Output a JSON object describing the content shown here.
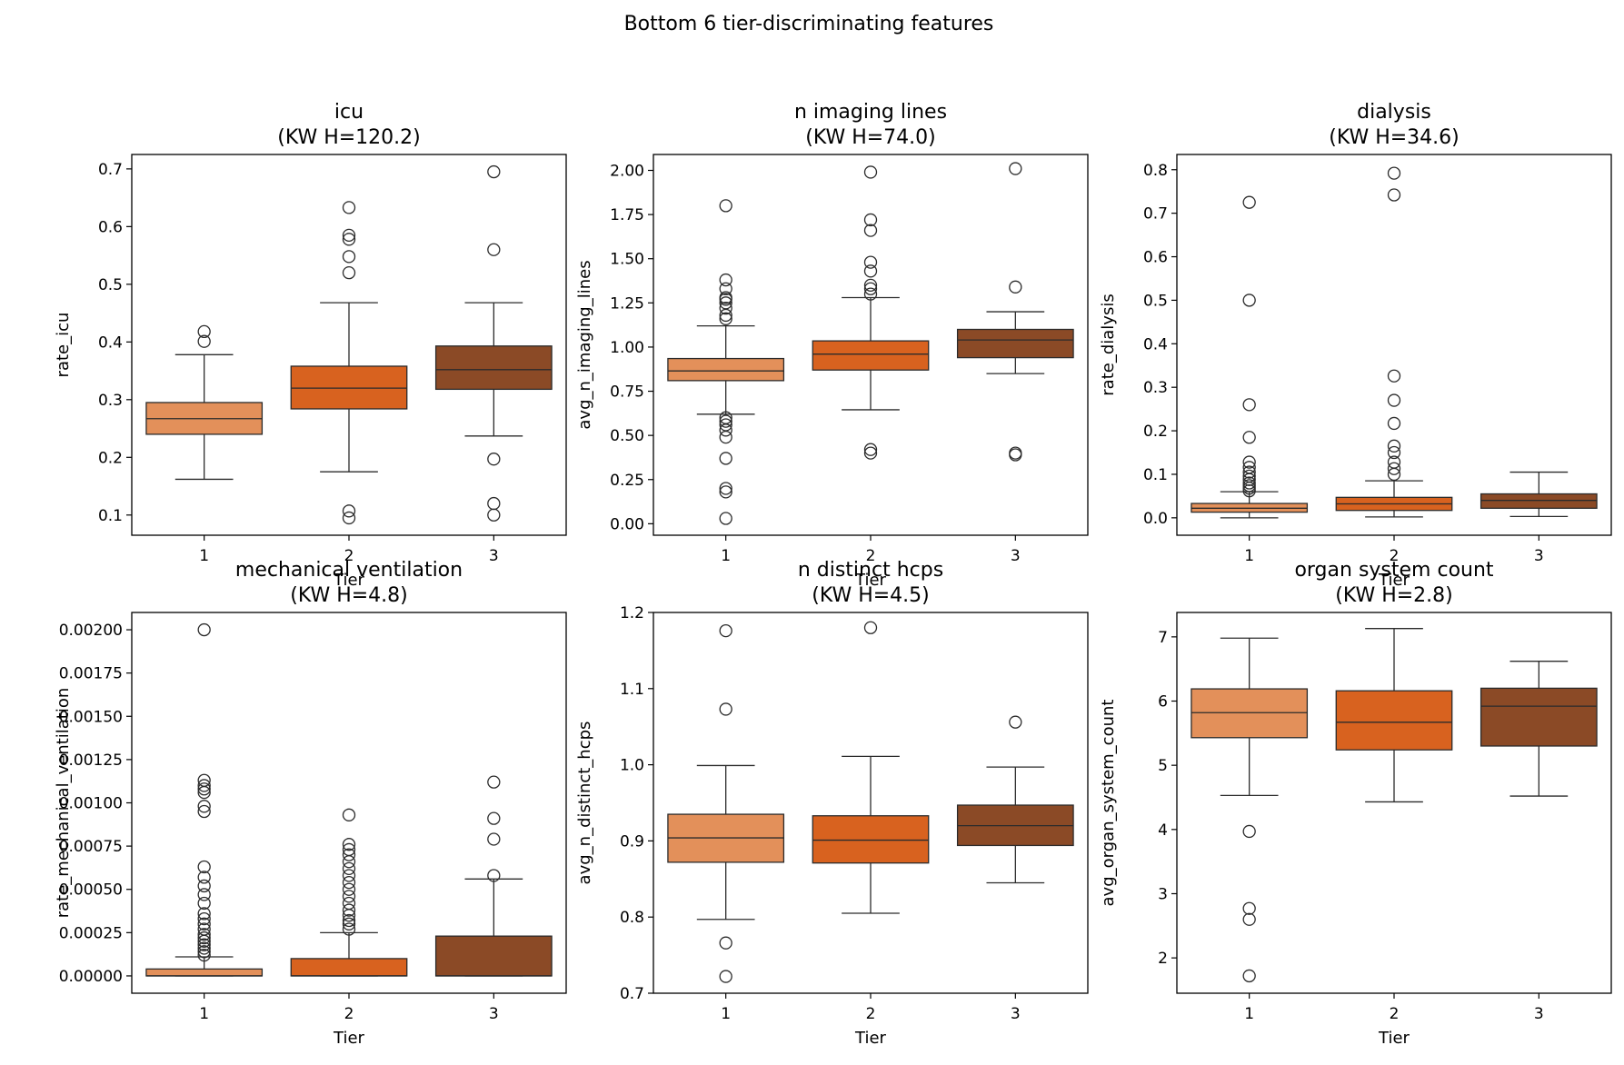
{
  "chart_data": {
    "type": "boxplot",
    "suptitle": "Bottom 6 tier-discriminating features",
    "colors": [
      "#E3905A",
      "#D8621F",
      "#8B4A26"
    ],
    "panels": [
      {
        "title": "icu",
        "subtitle": "(KW H=120.2)",
        "xlabel": "Tier",
        "ylabel": "rate_icu",
        "categories": [
          "1",
          "2",
          "3"
        ],
        "ylim": [
          0.065,
          0.725
        ],
        "yticks": [
          0.1,
          0.2,
          0.3,
          0.4,
          0.5,
          0.6,
          0.7
        ],
        "ytick_labels": [
          "0.1",
          "0.2",
          "0.3",
          "0.4",
          "0.5",
          "0.6",
          "0.7"
        ],
        "boxes": [
          {
            "tier": "1",
            "whislo": 0.162,
            "q1": 0.24,
            "med": 0.267,
            "q3": 0.295,
            "whishi": 0.378,
            "fliers": [
              0.401,
              0.418
            ]
          },
          {
            "tier": "2",
            "whislo": 0.175,
            "q1": 0.284,
            "med": 0.32,
            "q3": 0.358,
            "whishi": 0.468,
            "fliers": [
              0.095,
              0.107,
              0.52,
              0.548,
              0.578,
              0.585,
              0.633
            ]
          },
          {
            "tier": "3",
            "whislo": 0.237,
            "q1": 0.318,
            "med": 0.352,
            "q3": 0.393,
            "whishi": 0.468,
            "fliers": [
              0.1,
              0.12,
              0.197,
              0.56,
              0.695
            ]
          }
        ]
      },
      {
        "title": "n imaging lines",
        "subtitle": "(KW H=74.0)",
        "xlabel": "Tier",
        "ylabel": "avg_n_imaging_lines",
        "categories": [
          "1",
          "2",
          "3"
        ],
        "ylim": [
          -0.065,
          2.09
        ],
        "yticks": [
          0,
          0.25,
          0.5,
          0.75,
          1.0,
          1.25,
          1.5,
          1.75,
          2.0
        ],
        "ytick_labels": [
          "0.00",
          "0.25",
          "0.50",
          "0.75",
          "1.00",
          "1.25",
          "1.50",
          "1.75",
          "2.00"
        ],
        "boxes": [
          {
            "tier": "1",
            "whislo": 0.62,
            "q1": 0.81,
            "med": 0.865,
            "q3": 0.935,
            "whishi": 1.12,
            "fliers": [
              0.03,
              0.18,
              0.2,
              0.37,
              0.49,
              0.53,
              0.56,
              0.58,
              0.6,
              1.16,
              1.18,
              1.22,
              1.25,
              1.27,
              1.28,
              1.33,
              1.38,
              1.8
            ]
          },
          {
            "tier": "2",
            "whislo": 0.645,
            "q1": 0.87,
            "med": 0.96,
            "q3": 1.035,
            "whishi": 1.28,
            "fliers": [
              0.4,
              0.42,
              1.3,
              1.33,
              1.35,
              1.43,
              1.48,
              1.66,
              1.72,
              1.99
            ]
          },
          {
            "tier": "3",
            "whislo": 0.85,
            "q1": 0.94,
            "med": 1.04,
            "q3": 1.1,
            "whishi": 1.2,
            "fliers": [
              0.39,
              0.4,
              1.34,
              2.01
            ]
          }
        ]
      },
      {
        "title": "dialysis",
        "subtitle": "(KW H=34.6)",
        "xlabel": "Tier",
        "ylabel": "rate_dialysis",
        "categories": [
          "1",
          "2",
          "3"
        ],
        "ylim": [
          -0.04,
          0.835
        ],
        "yticks": [
          0,
          0.1,
          0.2,
          0.3,
          0.4,
          0.5,
          0.6,
          0.7,
          0.8
        ],
        "ytick_labels": [
          "0.0",
          "0.1",
          "0.2",
          "0.3",
          "0.4",
          "0.5",
          "0.6",
          "0.7",
          "0.8"
        ],
        "boxes": [
          {
            "tier": "1",
            "whislo": 0.0,
            "q1": 0.013,
            "med": 0.022,
            "q3": 0.033,
            "whishi": 0.06,
            "fliers": [
              0.062,
              0.068,
              0.074,
              0.08,
              0.088,
              0.096,
              0.105,
              0.116,
              0.128,
              0.185,
              0.26,
              0.5,
              0.725
            ]
          },
          {
            "tier": "2",
            "whislo": 0.002,
            "q1": 0.017,
            "med": 0.032,
            "q3": 0.047,
            "whishi": 0.085,
            "fliers": [
              0.1,
              0.113,
              0.128,
              0.15,
              0.165,
              0.217,
              0.27,
              0.326,
              0.742,
              0.792
            ]
          },
          {
            "tier": "3",
            "whislo": 0.003,
            "q1": 0.022,
            "med": 0.04,
            "q3": 0.055,
            "whishi": 0.105,
            "fliers": []
          }
        ]
      },
      {
        "title": "mechanical ventilation",
        "subtitle": "(KW H=4.8)",
        "xlabel": "Tier",
        "ylabel": "rate_mechanical_ventilation",
        "categories": [
          "1",
          "2",
          "3"
        ],
        "ylim": [
          -0.0001,
          0.0021
        ],
        "yticks": [
          0,
          0.00025,
          0.0005,
          0.00075,
          0.001,
          0.00125,
          0.0015,
          0.00175,
          0.002
        ],
        "ytick_labels": [
          "0.00000",
          "0.00025",
          "0.00050",
          "0.00075",
          "0.00100",
          "0.00125",
          "0.00150",
          "0.00175",
          "0.00200"
        ],
        "boxes": [
          {
            "tier": "1",
            "whislo": 0.0,
            "q1": 0.0,
            "med": 0.0,
            "q3": 4e-05,
            "whishi": 0.00011,
            "fliers": [
              0.00012,
              0.00014,
              0.00016,
              0.00018,
              0.0002,
              0.00022,
              0.00024,
              0.00027,
              0.0003,
              0.00033,
              0.00036,
              0.00042,
              0.00047,
              0.00052,
              0.00057,
              0.00063,
              0.00095,
              0.00098,
              0.00106,
              0.00108,
              0.0011,
              0.00113,
              0.002
            ]
          },
          {
            "tier": "2",
            "whislo": 0.0,
            "q1": 0.0,
            "med": 0.0,
            "q3": 0.0001,
            "whishi": 0.00025,
            "fliers": [
              0.00027,
              0.0003,
              0.00032,
              0.00035,
              0.00038,
              0.00042,
              0.00046,
              0.0005,
              0.00054,
              0.00058,
              0.00062,
              0.00066,
              0.0007,
              0.00073,
              0.00076,
              0.00093
            ]
          },
          {
            "tier": "3",
            "whislo": 0.0,
            "q1": 0.0,
            "med": 0.0,
            "q3": 0.00023,
            "whishi": 0.00056,
            "fliers": [
              0.00058,
              0.00079,
              0.00091,
              0.00112
            ]
          }
        ]
      },
      {
        "title": "n distinct hcps",
        "subtitle": "(KW H=4.5)",
        "xlabel": "Tier",
        "ylabel": "avg_n_distinct_hcps",
        "categories": [
          "1",
          "2",
          "3"
        ],
        "ylim": [
          0.7,
          1.2
        ],
        "yticks": [
          0.7,
          0.8,
          0.9,
          1.0,
          1.1,
          1.2
        ],
        "ytick_labels": [
          "0.7",
          "0.8",
          "0.9",
          "1.0",
          "1.1",
          "1.2"
        ],
        "boxes": [
          {
            "tier": "1",
            "whislo": 0.797,
            "q1": 0.872,
            "med": 0.904,
            "q3": 0.935,
            "whishi": 0.999,
            "fliers": [
              0.722,
              0.766,
              1.073,
              1.176
            ]
          },
          {
            "tier": "2",
            "whislo": 0.805,
            "q1": 0.871,
            "med": 0.901,
            "q3": 0.933,
            "whishi": 1.011,
            "fliers": [
              1.18
            ]
          },
          {
            "tier": "3",
            "whislo": 0.845,
            "q1": 0.894,
            "med": 0.92,
            "q3": 0.947,
            "whishi": 0.997,
            "fliers": [
              1.056
            ]
          }
        ]
      },
      {
        "title": "organ system count",
        "subtitle": "(KW H=2.8)",
        "xlabel": "Tier",
        "ylabel": "avg_organ_system_count",
        "categories": [
          "1",
          "2",
          "3"
        ],
        "ylim": [
          1.45,
          7.38
        ],
        "yticks": [
          2,
          3,
          4,
          5,
          6,
          7
        ],
        "ytick_labels": [
          "2",
          "3",
          "4",
          "5",
          "6",
          "7"
        ],
        "boxes": [
          {
            "tier": "1",
            "whislo": 4.53,
            "q1": 5.43,
            "med": 5.82,
            "q3": 6.19,
            "whishi": 6.98,
            "fliers": [
              1.72,
              2.6,
              2.77,
              3.97
            ]
          },
          {
            "tier": "2",
            "whislo": 4.43,
            "q1": 5.24,
            "med": 5.67,
            "q3": 6.16,
            "whishi": 7.13,
            "fliers": []
          },
          {
            "tier": "3",
            "whislo": 4.52,
            "q1": 5.3,
            "med": 5.92,
            "q3": 6.2,
            "whishi": 6.62,
            "fliers": []
          }
        ]
      }
    ]
  }
}
